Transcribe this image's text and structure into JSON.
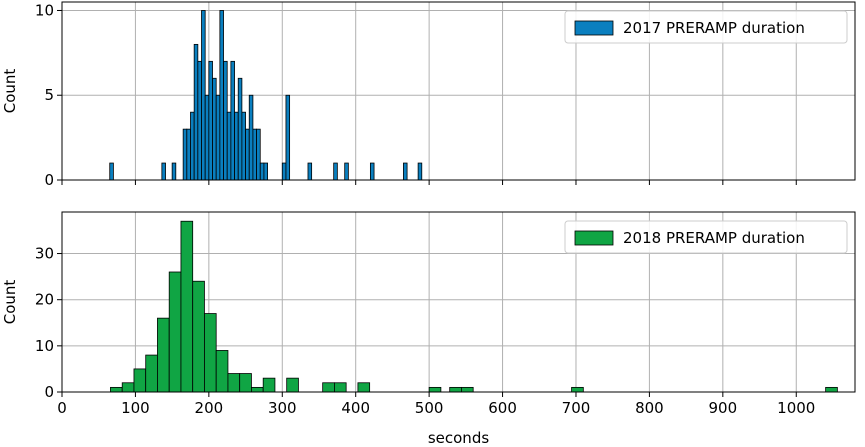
{
  "chart_data": [
    {
      "type": "bar",
      "series": [
        {
          "name": "2017 PRERAMP duration",
          "color": "#0a7fbf",
          "bins": [
            {
              "x": [
                65,
                70
              ],
              "count": 1
            },
            {
              "x": [
                136,
                141
              ],
              "count": 1
            },
            {
              "x": [
                150,
                155
              ],
              "count": 1
            },
            {
              "x": [
                165,
                170
              ],
              "count": 3
            },
            {
              "x": [
                170,
                175
              ],
              "count": 3
            },
            {
              "x": [
                175,
                180
              ],
              "count": 4
            },
            {
              "x": [
                180,
                185
              ],
              "count": 8
            },
            {
              "x": [
                185,
                190
              ],
              "count": 7
            },
            {
              "x": [
                190,
                195
              ],
              "count": 10
            },
            {
              "x": [
                195,
                200
              ],
              "count": 5
            },
            {
              "x": [
                200,
                205
              ],
              "count": 7
            },
            {
              "x": [
                205,
                210
              ],
              "count": 6
            },
            {
              "x": [
                210,
                215
              ],
              "count": 5
            },
            {
              "x": [
                215,
                220
              ],
              "count": 10
            },
            {
              "x": [
                220,
                225
              ],
              "count": 7
            },
            {
              "x": [
                225,
                230
              ],
              "count": 4
            },
            {
              "x": [
                230,
                235
              ],
              "count": 7
            },
            {
              "x": [
                235,
                240
              ],
              "count": 4
            },
            {
              "x": [
                240,
                245
              ],
              "count": 6
            },
            {
              "x": [
                245,
                250
              ],
              "count": 4
            },
            {
              "x": [
                250,
                255
              ],
              "count": 3
            },
            {
              "x": [
                255,
                260
              ],
              "count": 5
            },
            {
              "x": [
                260,
                265
              ],
              "count": 3
            },
            {
              "x": [
                265,
                270
              ],
              "count": 3
            },
            {
              "x": [
                270,
                275
              ],
              "count": 1
            },
            {
              "x": [
                275,
                280
              ],
              "count": 1
            },
            {
              "x": [
                300,
                305
              ],
              "count": 1
            },
            {
              "x": [
                305,
                310
              ],
              "count": 5
            },
            {
              "x": [
                335,
                340
              ],
              "count": 1
            },
            {
              "x": [
                370,
                375
              ],
              "count": 1
            },
            {
              "x": [
                385,
                390
              ],
              "count": 1
            },
            {
              "x": [
                420,
                425
              ],
              "count": 1
            },
            {
              "x": [
                465,
                470
              ],
              "count": 1
            },
            {
              "x": [
                485,
                490
              ],
              "count": 1
            }
          ]
        }
      ],
      "xlim": [
        0,
        1080
      ],
      "ylim": [
        0,
        10.5
      ],
      "yticks": [
        0,
        5,
        10
      ],
      "ylabel": "Count",
      "xlabel": "",
      "grid": true,
      "legend": "top-right"
    },
    {
      "type": "bar",
      "series": [
        {
          "name": "2018 PRERAMP duration",
          "color": "#10a544",
          "bins": [
            {
              "x": [
                66,
                82
              ],
              "count": 1
            },
            {
              "x": [
                82,
                98
              ],
              "count": 2
            },
            {
              "x": [
                98,
                114
              ],
              "count": 5
            },
            {
              "x": [
                114,
                130
              ],
              "count": 8
            },
            {
              "x": [
                130,
                146
              ],
              "count": 16
            },
            {
              "x": [
                146,
                162
              ],
              "count": 26
            },
            {
              "x": [
                162,
                178
              ],
              "count": 37
            },
            {
              "x": [
                178,
                194
              ],
              "count": 24
            },
            {
              "x": [
                194,
                210
              ],
              "count": 17
            },
            {
              "x": [
                210,
                226
              ],
              "count": 9
            },
            {
              "x": [
                226,
                242
              ],
              "count": 4
            },
            {
              "x": [
                242,
                258
              ],
              "count": 4
            },
            {
              "x": [
                258,
                274
              ],
              "count": 1
            },
            {
              "x": [
                274,
                290
              ],
              "count": 3
            },
            {
              "x": [
                306,
                322
              ],
              "count": 3
            },
            {
              "x": [
                355,
                371
              ],
              "count": 2
            },
            {
              "x": [
                371,
                387
              ],
              "count": 2
            },
            {
              "x": [
                403,
                419
              ],
              "count": 2
            },
            {
              "x": [
                500,
                516
              ],
              "count": 1
            },
            {
              "x": [
                528,
                544
              ],
              "count": 1
            },
            {
              "x": [
                544,
                560
              ],
              "count": 1
            },
            {
              "x": [
                694,
                710
              ],
              "count": 1
            },
            {
              "x": [
                1040,
                1056
              ],
              "count": 1
            }
          ]
        }
      ],
      "xlim": [
        0,
        1080
      ],
      "ylim": [
        0,
        39
      ],
      "yticks": [
        0,
        10,
        20,
        30
      ],
      "xticks": [
        0,
        100,
        200,
        300,
        400,
        500,
        600,
        700,
        800,
        900,
        1000
      ],
      "ylabel": "Count",
      "xlabel": "seconds",
      "grid": true,
      "legend": "top-right"
    }
  ]
}
